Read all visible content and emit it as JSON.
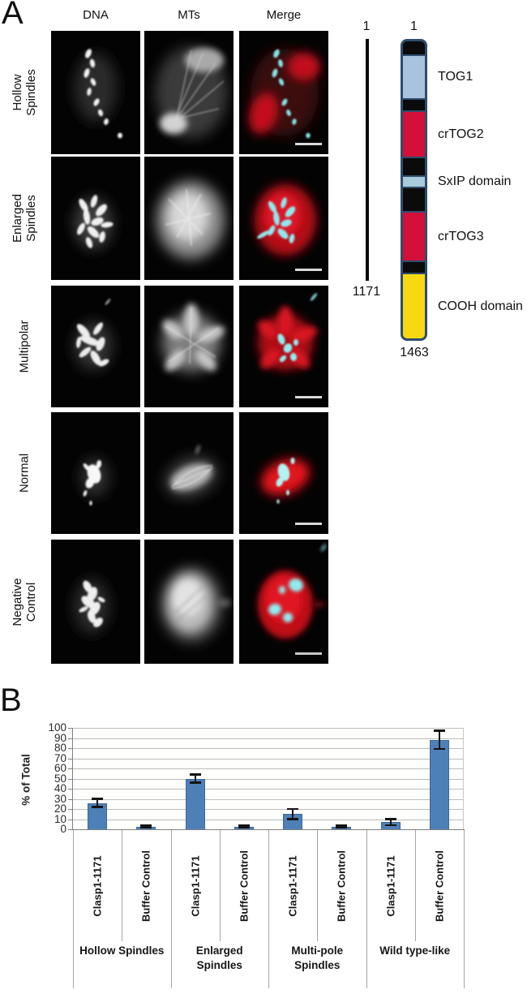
{
  "panel_a": {
    "label": "A",
    "column_headers": [
      "DNA",
      "MTs",
      "Merge"
    ],
    "rows": [
      {
        "label": "Hollow Spindles"
      },
      {
        "label": "Enlarged Spindles"
      },
      {
        "label": "Multipolar"
      },
      {
        "label": "Normal"
      },
      {
        "label": "Negative Control"
      }
    ],
    "construct_diagram": {
      "reference_bar": {
        "start": "1",
        "end": "1171"
      },
      "domain_bar": {
        "start": "1",
        "end": "1463"
      },
      "border_color": "#2e4d6e",
      "segments": [
        {
          "name": "linker",
          "color": "#0b0b0b",
          "h": 16
        },
        {
          "name": "TOG1",
          "color": "#a9c2de",
          "h": 52
        },
        {
          "name": "linker",
          "color": "#0b0b0b",
          "h": 13
        },
        {
          "name": "crTOG2",
          "color": "#d2103a",
          "h": 55
        },
        {
          "name": "linker",
          "color": "#0b0b0b",
          "h": 21
        },
        {
          "name": "SxIP domain",
          "color": "#a7cbd9",
          "h": 12
        },
        {
          "name": "linker",
          "color": "#0b0b0b",
          "h": 28
        },
        {
          "name": "crTOG3",
          "color": "#d2103a",
          "h": 59
        },
        {
          "name": "linker",
          "color": "#0b0b0b",
          "h": 13
        },
        {
          "name": "COOH domain",
          "color": "#f7d911",
          "h": 79
        }
      ]
    }
  },
  "panel_b": {
    "label": "B"
  },
  "chart_data": {
    "type": "bar",
    "title": "",
    "xlabel": "",
    "ylabel": "% of Total",
    "ylim": [
      0,
      100
    ],
    "ytick_step": 10,
    "grid": true,
    "legend_position": "none",
    "bar_color": "#4e80b8",
    "groups": [
      "Hollow Spindles",
      "Enlarged Spindles",
      "Multi-pole Spindles",
      "Wild type-like"
    ],
    "categories": [
      "Clasp1-1171",
      "Buffer Control",
      "Clasp1-1171",
      "Buffer Control",
      "Clasp1-1171",
      "Buffer Control",
      "Clasp1-1171",
      "Buffer Control"
    ],
    "values": [
      26,
      2.5,
      50,
      2.5,
      15,
      2.5,
      7,
      88
    ],
    "errors": [
      4,
      1,
      4,
      1,
      5,
      1,
      3,
      9
    ]
  }
}
